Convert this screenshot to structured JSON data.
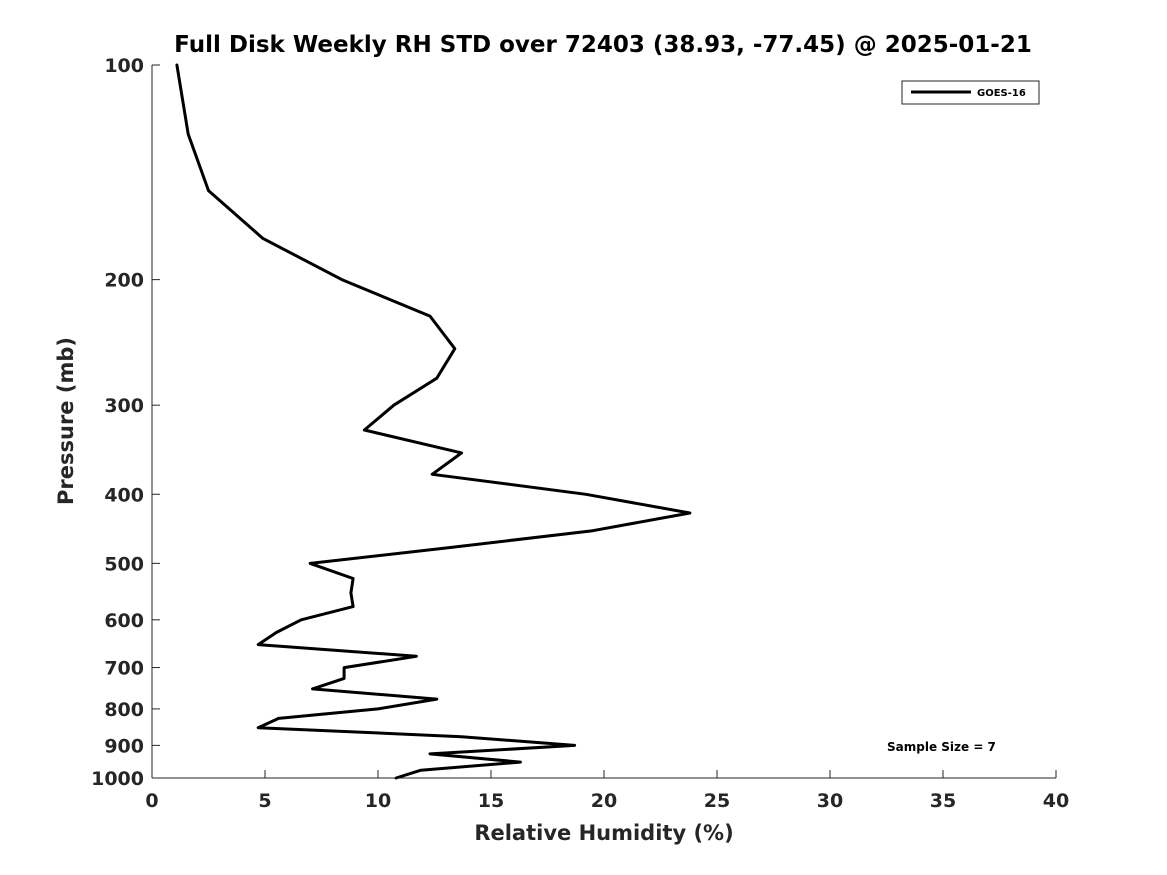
{
  "chart_data": {
    "type": "line",
    "title": "Full Disk Weekly RH STD over 72403 (38.93, -77.45) @ 2025-01-21",
    "xlabel": "Relative Humidity (%)",
    "ylabel": "Pressure (mb)",
    "xlim": [
      0,
      40
    ],
    "ylim": [
      100,
      1000
    ],
    "y_scale": "log",
    "y_reversed": true,
    "x_ticks": [
      "0",
      "5",
      "10",
      "15",
      "20",
      "25",
      "30",
      "35",
      "40"
    ],
    "y_ticks": [
      "100",
      "200",
      "300",
      "400",
      "500",
      "600",
      "700",
      "800",
      "900",
      "1000"
    ],
    "grid": false,
    "legend_position": "top-right",
    "series": [
      {
        "name": "GOES-16",
        "color": "#000000",
        "points": [
          [
            1.1,
            100
          ],
          [
            1.6,
            125
          ],
          [
            2.5,
            150
          ],
          [
            4.9,
            175
          ],
          [
            8.4,
            200
          ],
          [
            12.3,
            225
          ],
          [
            13.4,
            250
          ],
          [
            12.6,
            275
          ],
          [
            10.7,
            300
          ],
          [
            9.4,
            325
          ],
          [
            13.7,
            350
          ],
          [
            12.4,
            375
          ],
          [
            19.2,
            400
          ],
          [
            23.8,
            425
          ],
          [
            19.5,
            450
          ],
          [
            13.2,
            475
          ],
          [
            7.0,
            500
          ],
          [
            8.9,
            525
          ],
          [
            8.8,
            550
          ],
          [
            8.9,
            575
          ],
          [
            6.6,
            600
          ],
          [
            5.5,
            625
          ],
          [
            4.7,
            650
          ],
          [
            11.7,
            675
          ],
          [
            8.5,
            700
          ],
          [
            8.5,
            725
          ],
          [
            7.1,
            750
          ],
          [
            12.6,
            775
          ],
          [
            10.0,
            800
          ],
          [
            5.6,
            825
          ],
          [
            4.7,
            850
          ],
          [
            13.7,
            875
          ],
          [
            18.7,
            900
          ],
          [
            12.3,
            925
          ],
          [
            16.3,
            950
          ],
          [
            11.9,
            975
          ],
          [
            10.8,
            1000
          ]
        ]
      }
    ],
    "annotation": "Sample Size = 7"
  }
}
